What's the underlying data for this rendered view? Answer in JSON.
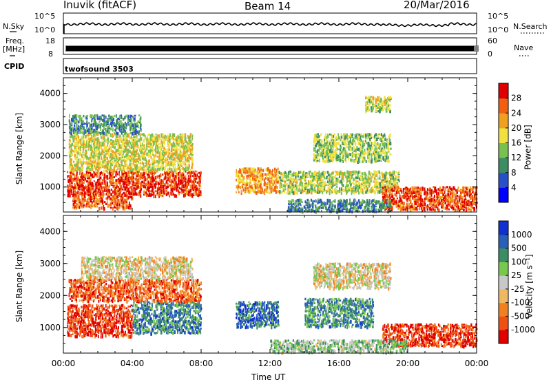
{
  "header": {
    "station": "Inuvik (fitACF)",
    "beam": "Beam 14",
    "date": "20/Mar/2016"
  },
  "top_panels": {
    "nsky_label": "N.Sky",
    "nsky_ticks": [
      "10^5",
      "10^0"
    ],
    "nsearch_label": "N.Search",
    "nsearch_ticks": [
      "10^5",
      "10^0"
    ],
    "freq_label": "Freq.",
    "freq_unit": "[MHz]",
    "freq_ticks": [
      "18",
      "8"
    ],
    "nave_label": "Nave",
    "nave_ticks": [
      "60",
      "0"
    ],
    "cpid_label": "CPID",
    "cpid_value": "twofsound 3503"
  },
  "chart_data": [
    {
      "type": "heatmap",
      "ylabel": "Slant Range [km]",
      "xlabel": "Time UT",
      "x_ticks": [
        "00:00",
        "04:00",
        "08:00",
        "12:00",
        "16:00",
        "20:00",
        "00:00"
      ],
      "y_ticks": [
        "4000",
        "3000",
        "2000",
        "1000"
      ],
      "ylim": [
        200,
        4500
      ],
      "colorbar": {
        "label": "Power [dB]",
        "ticks": [
          "28",
          "24",
          "20",
          "16",
          "12",
          "8",
          "4"
        ],
        "colors": [
          "#0000ff",
          "#2850c8",
          "#3c8c64",
          "#78c050",
          "#f0e040",
          "#f0a020",
          "#f06010",
          "#e00000"
        ]
      },
      "regions": [
        {
          "t0": 0.2,
          "t1": 8.0,
          "r0": 700,
          "r1": 1500,
          "v": 0.88
        },
        {
          "t0": 0.3,
          "t1": 7.5,
          "r0": 1500,
          "r1": 2700,
          "v": 0.55
        },
        {
          "t0": 0.3,
          "t1": 4.5,
          "r0": 2700,
          "r1": 3300,
          "v": 0.3
        },
        {
          "t0": 0.5,
          "t1": 4.0,
          "r0": 300,
          "r1": 700,
          "v": 0.8
        },
        {
          "t0": 10.0,
          "t1": 12.5,
          "r0": 800,
          "r1": 1600,
          "v": 0.7
        },
        {
          "t0": 12.5,
          "t1": 19.5,
          "r0": 800,
          "r1": 1500,
          "v": 0.5
        },
        {
          "t0": 14.5,
          "t1": 19.0,
          "r0": 1800,
          "r1": 2700,
          "v": 0.45
        },
        {
          "t0": 18.5,
          "t1": 24.0,
          "r0": 250,
          "r1": 1000,
          "v": 0.85
        },
        {
          "t0": 13.0,
          "t1": 19.0,
          "r0": 200,
          "r1": 600,
          "v": 0.3
        },
        {
          "t0": 17.5,
          "t1": 19.0,
          "r0": 3400,
          "r1": 3900,
          "v": 0.5
        }
      ]
    },
    {
      "type": "heatmap",
      "ylabel": "Slant Range [km]",
      "xlabel": "Time UT",
      "x_ticks": [
        "00:00",
        "04:00",
        "08:00",
        "12:00",
        "16:00",
        "20:00",
        "00:00"
      ],
      "y_ticks": [
        "4000",
        "3000",
        "2000",
        "1000"
      ],
      "ylim": [
        200,
        4500
      ],
      "colorbar": {
        "label": "Velocity [m s⁻¹]",
        "ticks": [
          "1000",
          "500",
          "100",
          "25",
          "-25",
          "-100",
          "-500",
          "-1000"
        ],
        "colors": [
          "#e00000",
          "#f05010",
          "#f08020",
          "#f0b860",
          "#c8c8c8",
          "#78c850",
          "#3c8c64",
          "#2860b8",
          "#1030d0"
        ]
      },
      "regions": [
        {
          "t0": 0.2,
          "t1": 4.0,
          "r0": 700,
          "r1": 1700,
          "v": 0.1
        },
        {
          "t0": 4.0,
          "t1": 8.0,
          "r0": 800,
          "r1": 1800,
          "v": 0.75
        },
        {
          "t0": 0.3,
          "t1": 8.0,
          "r0": 1800,
          "r1": 2500,
          "v": 0.2
        },
        {
          "t0": 1.0,
          "t1": 7.5,
          "r0": 2500,
          "r1": 3200,
          "v": 0.45
        },
        {
          "t0": 10.0,
          "t1": 12.5,
          "r0": 1000,
          "r1": 1800,
          "v": 0.82
        },
        {
          "t0": 14.0,
          "t1": 18.0,
          "r0": 1000,
          "r1": 1900,
          "v": 0.72
        },
        {
          "t0": 14.5,
          "t1": 19.0,
          "r0": 2200,
          "r1": 3000,
          "v": 0.45
        },
        {
          "t0": 18.5,
          "t1": 24.0,
          "r0": 400,
          "r1": 1100,
          "v": 0.12
        },
        {
          "t0": 12.0,
          "t1": 20.0,
          "r0": 200,
          "r1": 600,
          "v": 0.6
        }
      ]
    }
  ]
}
